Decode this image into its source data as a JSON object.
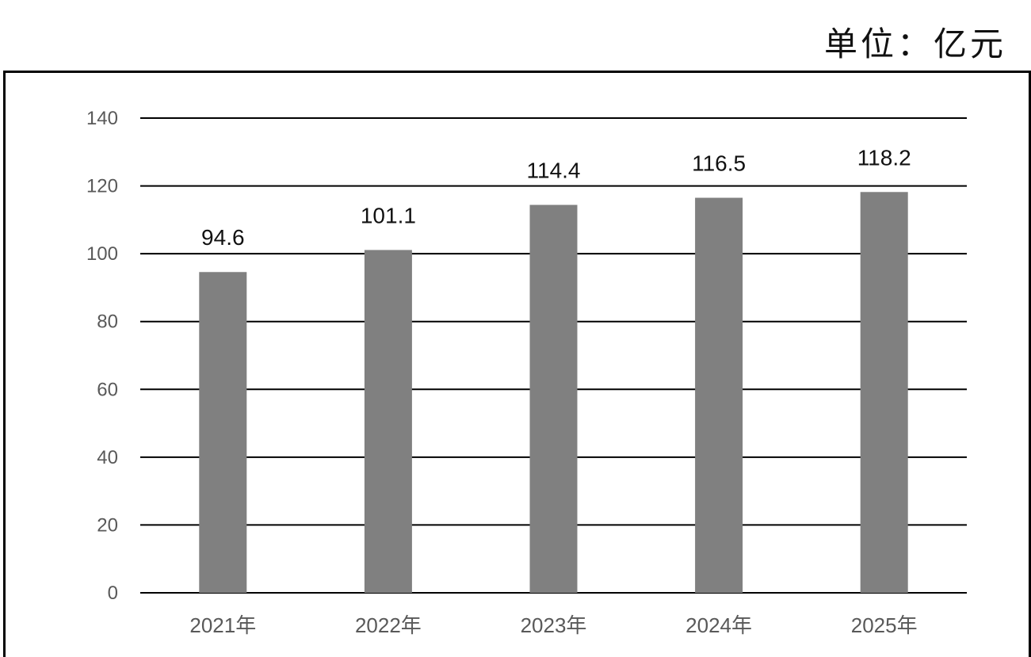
{
  "unit_label": "单位：亿元",
  "chart_data": {
    "type": "bar",
    "title": "",
    "xlabel": "",
    "ylabel": "",
    "categories": [
      "2021年",
      "2022年",
      "2023年",
      "2024年",
      "2025年"
    ],
    "values": [
      94.6,
      101.1,
      114.4,
      116.5,
      118.2
    ],
    "data_labels": [
      "94.6",
      "101.1",
      "114.4",
      "116.5",
      "118.2"
    ],
    "ylim": [
      0,
      140
    ],
    "yticks": [
      0,
      20,
      40,
      60,
      80,
      100,
      120,
      140
    ],
    "grid": true,
    "legend": "none",
    "bar_color": "#808080"
  }
}
